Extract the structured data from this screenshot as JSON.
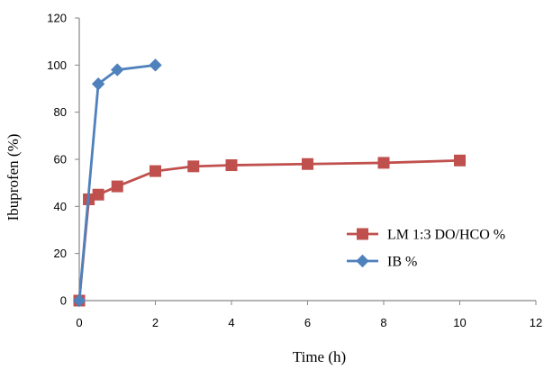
{
  "chart_data": {
    "type": "line",
    "xlabel": "Time (h)",
    "ylabel": "Ibuprofen (%)",
    "xlim": [
      0,
      12
    ],
    "ylim": [
      0,
      120
    ],
    "xticks": [
      "0",
      "2",
      "4",
      "6",
      "8",
      "10",
      "12"
    ],
    "yticks": [
      "0",
      "20",
      "40",
      "60",
      "80",
      "100",
      "120"
    ],
    "grid": false,
    "legend_position": "right",
    "series": [
      {
        "name": "LM 1:3 DO/HCO %",
        "color": "#c0504d",
        "marker": "square",
        "x": [
          0,
          0.25,
          0.5,
          1,
          2,
          3,
          4,
          6,
          8,
          10
        ],
        "y": [
          0,
          43,
          45,
          48.5,
          55,
          57,
          57.5,
          58,
          58.5,
          59.5
        ]
      },
      {
        "name": "IB %",
        "color": "#4f81bd",
        "marker": "diamond",
        "x": [
          0,
          0.5,
          1,
          2
        ],
        "y": [
          0,
          92,
          98,
          100
        ]
      }
    ]
  }
}
